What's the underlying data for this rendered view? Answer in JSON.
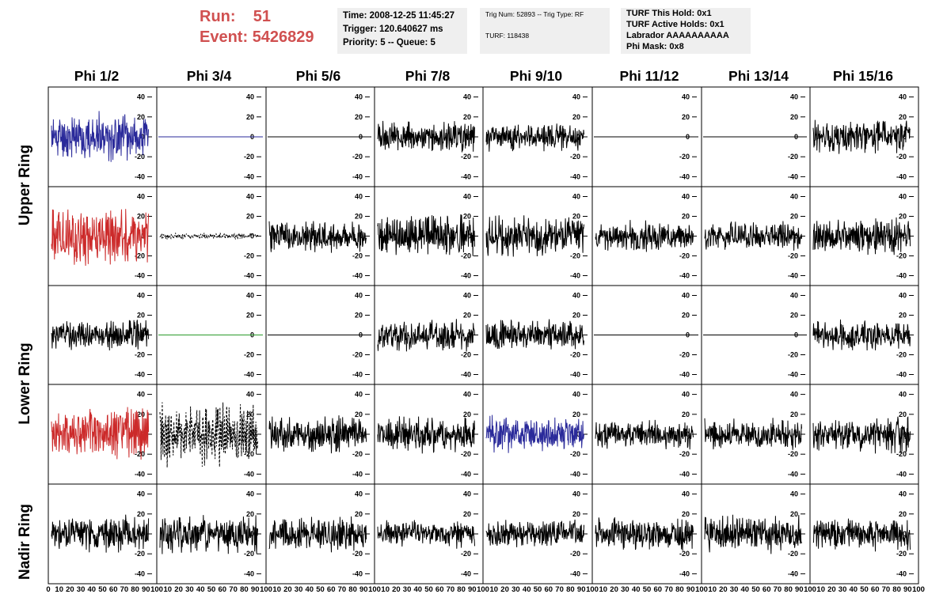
{
  "header": {
    "run_label": "Run:",
    "run_value": "51",
    "event_label": "Event:",
    "event_value": "5426829",
    "time": "Time: 2008-12-25 11:45:27",
    "trigger": "Trigger: 120.640627 ms",
    "priority": "Priority: 5 -- Queue: 5",
    "trig_num": "Trig Num: 52893 -- Trig Type: RF",
    "turf_num": "TURF: 118438",
    "turf_hold": "TURF This Hold: 0x1",
    "turf_active": "TURF Active Holds: 0x1",
    "labrador": "Labrador AAAAAAAAAA",
    "phi_mask": "Phi Mask: 0x8"
  },
  "columns": [
    "Phi 1/2",
    "Phi 3/4",
    "Phi 5/6",
    "Phi 7/8",
    "Phi 9/10",
    "Phi 11/12",
    "Phi 13/14",
    "Phi 15/16"
  ],
  "rings": [
    "Upper Ring",
    "Lower Ring",
    "Nadir Ring"
  ],
  "axes": {
    "y_ticks": [
      40,
      20,
      0,
      -20,
      -40
    ],
    "x_ticks": [
      0,
      10,
      20,
      30,
      40,
      50,
      60,
      70,
      80,
      90,
      100
    ],
    "x_range": [
      0,
      100
    ],
    "y_range": [
      -50,
      50
    ]
  },
  "colors": {
    "blue": "#2a2a9a",
    "red": "#cc2a2a",
    "green": "#2a9a2a",
    "black": "#000000",
    "title_red": "#d05050",
    "info_bg": "#efefef"
  },
  "traces": [
    [
      {
        "color": "blue",
        "amp": 22,
        "seed": 11,
        "style": "noise"
      },
      {
        "color": "blue",
        "amp": 0,
        "seed": 12,
        "style": "flat"
      },
      {
        "color": "black",
        "amp": 0,
        "seed": 13,
        "style": "flat"
      },
      {
        "color": "black",
        "amp": 14,
        "seed": 14,
        "style": "noise"
      },
      {
        "color": "black",
        "amp": 13,
        "seed": 15,
        "style": "noise"
      },
      {
        "color": "black",
        "amp": 0,
        "seed": 16,
        "style": "flat"
      },
      {
        "color": "black",
        "amp": 0,
        "seed": 17,
        "style": "flat"
      },
      {
        "color": "black",
        "amp": 16,
        "seed": 18,
        "style": "noise"
      }
    ],
    [
      {
        "color": "red",
        "amp": 28,
        "seed": 21,
        "style": "noise"
      },
      {
        "color": "black",
        "amp": 3,
        "seed": 22,
        "style": "dotted"
      },
      {
        "color": "black",
        "amp": 16,
        "seed": 23,
        "style": "noise"
      },
      {
        "color": "black",
        "amp": 20,
        "seed": 24,
        "style": "noise"
      },
      {
        "color": "black",
        "amp": 19,
        "seed": 25,
        "style": "noise"
      },
      {
        "color": "black",
        "amp": 14,
        "seed": 26,
        "style": "noise"
      },
      {
        "color": "black",
        "amp": 13,
        "seed": 27,
        "style": "noise"
      },
      {
        "color": "black",
        "amp": 17,
        "seed": 28,
        "style": "noise"
      }
    ],
    [
      {
        "color": "black",
        "amp": 14,
        "seed": 31,
        "style": "noise"
      },
      {
        "color": "green",
        "amp": 0,
        "seed": 32,
        "style": "flat"
      },
      {
        "color": "black",
        "amp": 0,
        "seed": 33,
        "style": "flat"
      },
      {
        "color": "black",
        "amp": 15,
        "seed": 34,
        "style": "noise"
      },
      {
        "color": "black",
        "amp": 15,
        "seed": 35,
        "style": "noise"
      },
      {
        "color": "black",
        "amp": 0,
        "seed": 36,
        "style": "flat"
      },
      {
        "color": "black",
        "amp": 0,
        "seed": 37,
        "style": "flat"
      },
      {
        "color": "black",
        "amp": 14,
        "seed": 38,
        "style": "noise"
      }
    ],
    [
      {
        "color": "red",
        "amp": 25,
        "seed": 41,
        "style": "noise"
      },
      {
        "color": "black",
        "amp": 30,
        "seed": 42,
        "style": "dashed"
      },
      {
        "color": "black",
        "amp": 17,
        "seed": 43,
        "style": "noise"
      },
      {
        "color": "black",
        "amp": 17,
        "seed": 44,
        "style": "noise"
      },
      {
        "color": "blue",
        "amp": 17,
        "seed": 45,
        "style": "noise"
      },
      {
        "color": "black",
        "amp": 13,
        "seed": 46,
        "style": "noise"
      },
      {
        "color": "black",
        "amp": 14,
        "seed": 47,
        "style": "noise"
      },
      {
        "color": "black",
        "amp": 17,
        "seed": 48,
        "style": "noise"
      }
    ],
    [
      {
        "color": "black",
        "amp": 17,
        "seed": 51,
        "style": "noise"
      },
      {
        "color": "black",
        "amp": 19,
        "seed": 52,
        "style": "noise"
      },
      {
        "color": "black",
        "amp": 16,
        "seed": 53,
        "style": "noise"
      },
      {
        "color": "black",
        "amp": 13,
        "seed": 54,
        "style": "noise"
      },
      {
        "color": "black",
        "amp": 13,
        "seed": 55,
        "style": "noise"
      },
      {
        "color": "black",
        "amp": 15,
        "seed": 56,
        "style": "noise"
      },
      {
        "color": "black",
        "amp": 17,
        "seed": 57,
        "style": "noise"
      },
      {
        "color": "black",
        "amp": 15,
        "seed": 58,
        "style": "noise"
      }
    ]
  ]
}
